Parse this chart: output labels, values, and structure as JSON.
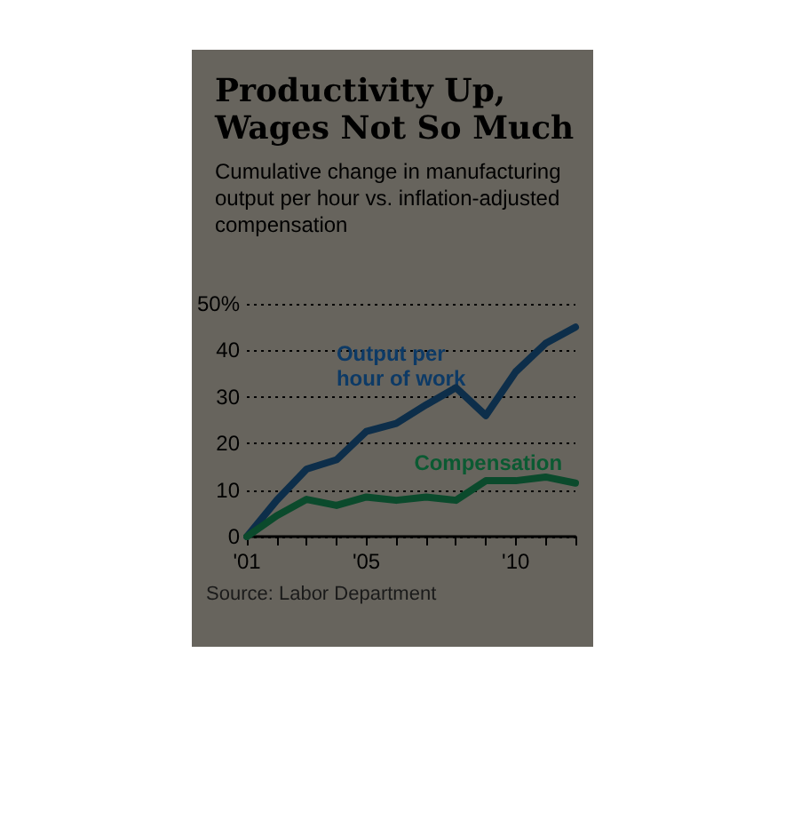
{
  "chart_data": {
    "type": "line",
    "title": "Productivity Up, Wages Not So Much",
    "subtitle": "Cumulative change in manufacturing output per hour vs. inflation-adjusted compensation",
    "x": [
      2001,
      2002,
      2003,
      2004,
      2005,
      2006,
      2007,
      2008,
      2009,
      2010,
      2011,
      2012
    ],
    "series": [
      {
        "name": "Output per hour of work",
        "color": "#0d2e4a",
        "values": [
          0,
          7.8,
          14.5,
          16.5,
          22.6,
          24.3,
          28.3,
          32,
          26,
          35.4,
          41.5,
          45
        ]
      },
      {
        "name": "Compensation",
        "color": "#0b4a2c",
        "values": [
          0,
          4.5,
          8,
          6.7,
          8.5,
          7.8,
          8.5,
          7.8,
          12,
          12,
          12.8,
          11.5
        ]
      }
    ],
    "xlim": [
      2001,
      2012
    ],
    "xticks": [
      {
        "value": 2001,
        "label": "'01"
      },
      {
        "value": 2002,
        "label": null
      },
      {
        "value": 2003,
        "label": null
      },
      {
        "value": 2004,
        "label": null
      },
      {
        "value": 2005,
        "label": "'05"
      },
      {
        "value": 2006,
        "label": null
      },
      {
        "value": 2007,
        "label": null
      },
      {
        "value": 2008,
        "label": null
      },
      {
        "value": 2009,
        "label": null
      },
      {
        "value": 2010,
        "label": "'10"
      },
      {
        "value": 2011,
        "label": null
      },
      {
        "value": 2012,
        "label": null
      }
    ],
    "ylim": [
      0,
      50
    ],
    "yticks": [
      0,
      10,
      20,
      30,
      40,
      {
        "value": 50,
        "label": "50%"
      }
    ],
    "grid": "y",
    "legend": false,
    "marker": "none",
    "line_style": "solid",
    "annotations": [
      "Source: Labor Department"
    ]
  }
}
